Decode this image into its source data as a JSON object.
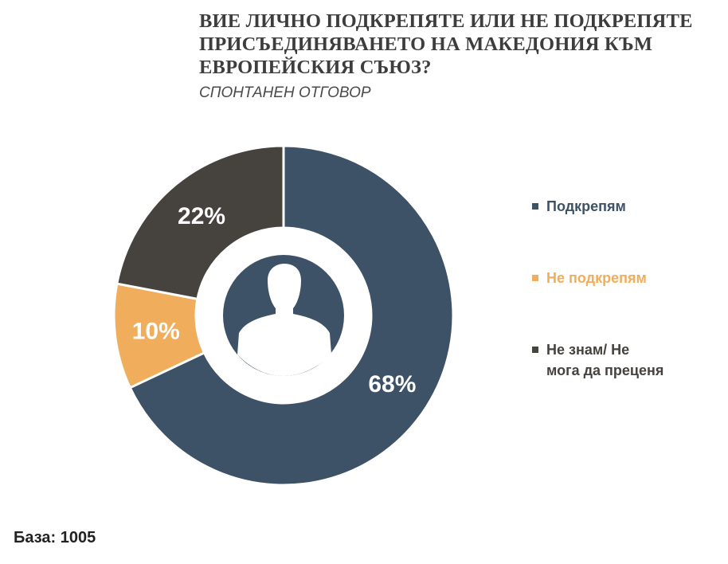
{
  "title": "ВИЕ ЛИЧНО ПОДКРЕПЯТЕ ИЛИ НЕ ПОДКРЕПЯТЕ ПРИСЪЕДИНЯВАНЕТО НА МАКЕДОНИЯ КЪМ ЕВРОПЕЙСКИЯ СЪЮЗ?",
  "subtitle": "СПОНТАНЕН ОТГОВОР",
  "footer": {
    "base": "База: 1005"
  },
  "center_icon": "person-silhouette-icon",
  "chart_data": {
    "type": "pie",
    "donut": true,
    "legend_position": "right",
    "categories": [
      "Подкрепям",
      "Не подкрепям",
      "Не знам/ Не мога да преценя"
    ],
    "values": [
      68,
      10,
      22
    ],
    "value_labels": [
      "68%",
      "10%",
      "22%"
    ],
    "colors": [
      "#3d5266",
      "#f0ad5c",
      "#46423d"
    ],
    "legend_text_colors": [
      "#3d5266",
      "#f0ad5c",
      "#46423d"
    ],
    "legend": [
      {
        "label": "Подкрепям"
      },
      {
        "label": "Не подкрепям"
      },
      {
        "label": "Не знам/ Не\nмога да преценя"
      }
    ]
  }
}
